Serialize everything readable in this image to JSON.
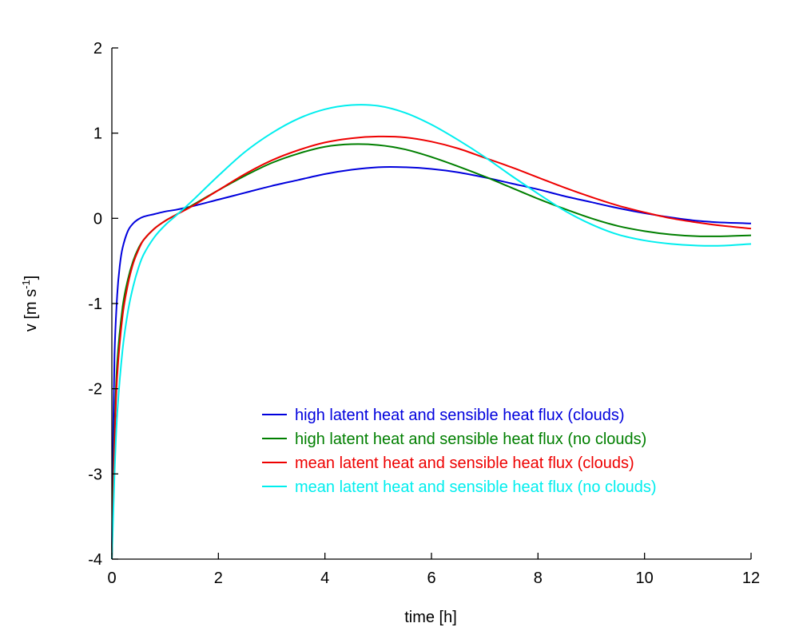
{
  "chart_data": {
    "type": "line",
    "title": "",
    "xlabel": "time [h]",
    "ylabel_main": "v [m s",
    "ylabel_sup": "-1",
    "ylabel_end": "]",
    "xlim": [
      0,
      12
    ],
    "ylim": [
      -4,
      2
    ],
    "xticks": [
      0,
      2,
      4,
      6,
      8,
      10,
      12
    ],
    "yticks": [
      -4,
      -3,
      -2,
      -1,
      0,
      1,
      2
    ],
    "xtick_labels": [
      "0",
      "2",
      "4",
      "6",
      "8",
      "10",
      "12"
    ],
    "ytick_labels": [
      "-4",
      "-3",
      "-2",
      "-1",
      "0",
      "1",
      "2"
    ],
    "grid": false,
    "legend_position": "bottom-right",
    "series": [
      {
        "name": "high latent heat and sensible heat flux (clouds)",
        "color": "#0000dd",
        "x": [
          0,
          0.02,
          0.05,
          0.1,
          0.15,
          0.2,
          0.3,
          0.4,
          0.5,
          0.6,
          0.8,
          1.0,
          1.2,
          1.5,
          2,
          2.5,
          3,
          3.5,
          4,
          4.5,
          5,
          5.5,
          6,
          6.5,
          7,
          7.5,
          8,
          8.5,
          9,
          9.5,
          10,
          10.5,
          11,
          11.5,
          12
        ],
        "y": [
          -4.0,
          -2.8,
          -1.6,
          -0.9,
          -0.55,
          -0.35,
          -0.15,
          -0.06,
          -0.01,
          0.02,
          0.05,
          0.08,
          0.1,
          0.14,
          0.22,
          0.3,
          0.38,
          0.45,
          0.52,
          0.57,
          0.6,
          0.6,
          0.58,
          0.54,
          0.48,
          0.41,
          0.34,
          0.26,
          0.19,
          0.12,
          0.06,
          0.01,
          -0.03,
          -0.05,
          -0.06
        ]
      },
      {
        "name": "high latent heat and sensible heat flux (no clouds)",
        "color": "#007f00",
        "x": [
          0,
          0.02,
          0.05,
          0.1,
          0.2,
          0.3,
          0.4,
          0.5,
          0.6,
          0.8,
          1.0,
          1.2,
          1.5,
          2,
          2.5,
          3,
          3.5,
          4,
          4.5,
          5,
          5.5,
          6,
          6.5,
          7,
          7.5,
          8,
          8.5,
          9,
          9.5,
          10,
          10.5,
          11,
          11.5,
          12
        ],
        "y": [
          -4.0,
          -3.3,
          -2.5,
          -1.7,
          -1.05,
          -0.72,
          -0.5,
          -0.35,
          -0.25,
          -0.12,
          -0.03,
          0.04,
          0.15,
          0.33,
          0.5,
          0.65,
          0.76,
          0.84,
          0.87,
          0.86,
          0.81,
          0.72,
          0.61,
          0.49,
          0.36,
          0.23,
          0.11,
          0.0,
          -0.09,
          -0.15,
          -0.19,
          -0.21,
          -0.21,
          -0.2
        ]
      },
      {
        "name": "mean latent heat and sensible heat flux (clouds)",
        "color": "#ee0000",
        "x": [
          0,
          0.02,
          0.05,
          0.1,
          0.2,
          0.3,
          0.4,
          0.5,
          0.6,
          0.8,
          1.0,
          1.2,
          1.5,
          2,
          2.5,
          3,
          3.5,
          4,
          4.5,
          5,
          5.5,
          6,
          6.5,
          7,
          7.5,
          8,
          8.5,
          9,
          9.5,
          10,
          10.5,
          11,
          11.5,
          12
        ],
        "y": [
          -4.0,
          -3.4,
          -2.65,
          -1.85,
          -1.15,
          -0.78,
          -0.53,
          -0.37,
          -0.25,
          -0.12,
          -0.03,
          0.04,
          0.14,
          0.33,
          0.52,
          0.68,
          0.8,
          0.89,
          0.94,
          0.96,
          0.95,
          0.9,
          0.82,
          0.71,
          0.6,
          0.48,
          0.36,
          0.25,
          0.15,
          0.07,
          0.0,
          -0.05,
          -0.09,
          -0.12
        ]
      },
      {
        "name": "mean latent heat and sensible heat flux (no clouds)",
        "color": "#00eeee",
        "x": [
          0,
          0.02,
          0.05,
          0.1,
          0.2,
          0.3,
          0.4,
          0.5,
          0.6,
          0.8,
          1.0,
          1.2,
          1.5,
          2,
          2.5,
          3,
          3.5,
          4,
          4.5,
          5,
          5.5,
          6,
          6.5,
          7,
          7.5,
          8,
          8.5,
          9,
          9.5,
          10,
          10.5,
          11,
          11.5,
          12
        ],
        "y": [
          -4.0,
          -3.6,
          -3.0,
          -2.3,
          -1.55,
          -1.1,
          -0.8,
          -0.58,
          -0.42,
          -0.22,
          -0.08,
          0.03,
          0.2,
          0.5,
          0.78,
          1.0,
          1.17,
          1.28,
          1.33,
          1.32,
          1.24,
          1.1,
          0.92,
          0.72,
          0.5,
          0.29,
          0.09,
          -0.07,
          -0.19,
          -0.26,
          -0.3,
          -0.32,
          -0.32,
          -0.3
        ]
      }
    ]
  }
}
